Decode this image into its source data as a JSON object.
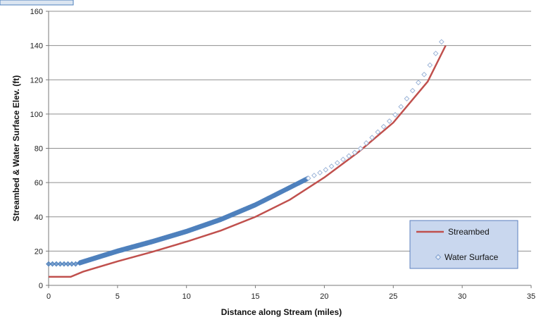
{
  "chart_data": {
    "type": "line",
    "title": "",
    "xlabel": "Distance along Stream (miles)",
    "ylabel": "Streambed & Water Surface Elev. (ft)",
    "xlim": [
      0,
      35
    ],
    "ylim": [
      0,
      160
    ],
    "x_ticks": [
      0,
      5,
      10,
      15,
      20,
      25,
      30,
      35
    ],
    "y_ticks": [
      0,
      20,
      40,
      60,
      80,
      100,
      120,
      140,
      160
    ],
    "grid": "horizontal",
    "legend_position": "bottom-right",
    "series": [
      {
        "name": "Streambed",
        "style": "line",
        "color": "#c0504d",
        "points": [
          [
            0,
            5
          ],
          [
            1.6,
            5
          ],
          [
            2.5,
            8
          ],
          [
            5,
            14
          ],
          [
            7.5,
            19.5
          ],
          [
            10,
            25.5
          ],
          [
            12.5,
            32
          ],
          [
            15,
            40
          ],
          [
            17.5,
            50
          ],
          [
            20,
            63
          ],
          [
            22.5,
            78
          ],
          [
            25,
            95
          ],
          [
            27.5,
            119
          ],
          [
            28.8,
            140
          ]
        ]
      },
      {
        "name": "Water Surface",
        "style": "markers",
        "color": "#4f81bd",
        "marker": "diamond",
        "points": [
          [
            0,
            12.5
          ],
          [
            2,
            12.5
          ],
          [
            5,
            20
          ],
          [
            7.5,
            25.5
          ],
          [
            10,
            31.5
          ],
          [
            12.5,
            38.5
          ],
          [
            15,
            47
          ],
          [
            18.7,
            62
          ],
          [
            20,
            67
          ],
          [
            22.5,
            79
          ],
          [
            25,
            98
          ],
          [
            27.5,
            126
          ],
          [
            28.8,
            147
          ]
        ]
      }
    ]
  }
}
